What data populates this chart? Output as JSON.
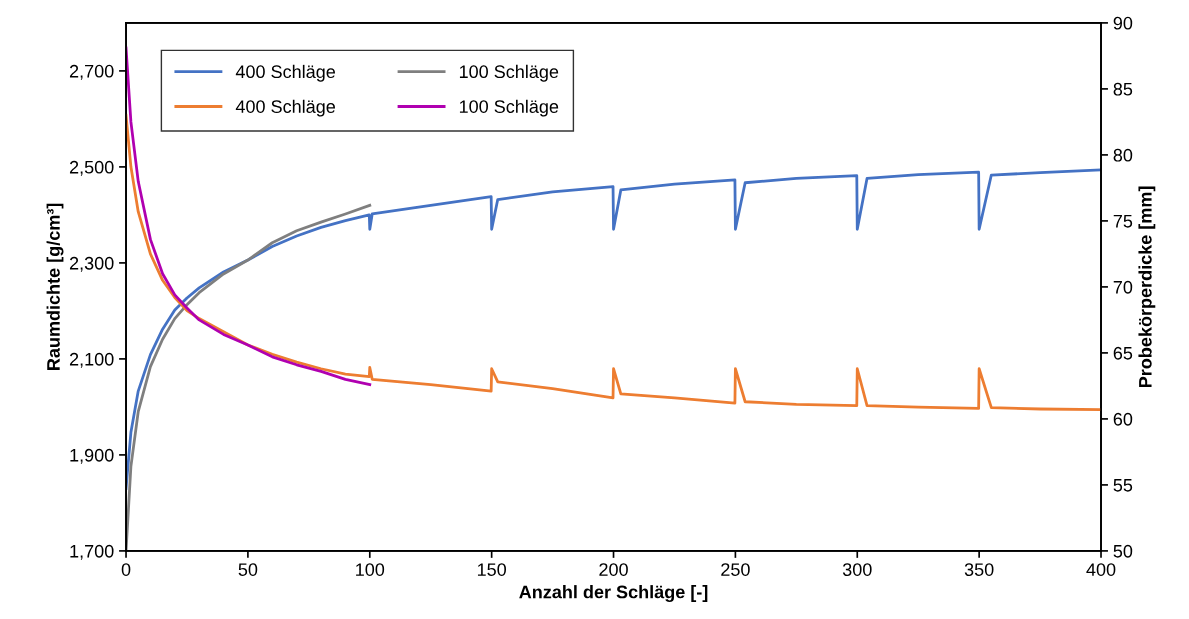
{
  "chart_data": {
    "type": "line",
    "xlabel": "Anzahl der Schläge [-]",
    "ylabel": "Raumdichte [g/cm³]",
    "y2label": "Probekörperdicke [mm]",
    "xlim": [
      0,
      400
    ],
    "xticks": [
      0,
      50,
      100,
      150,
      200,
      250,
      300,
      350,
      400
    ],
    "ylim": [
      1700,
      2800
    ],
    "yticks": [
      {
        "value": 1700,
        "label": "1,700"
      },
      {
        "value": 1900,
        "label": "1,900"
      },
      {
        "value": 2100,
        "label": "2,100"
      },
      {
        "value": 2300,
        "label": "2,300"
      },
      {
        "value": 2500,
        "label": "2,500"
      },
      {
        "value": 2700,
        "label": "2,700"
      }
    ],
    "y2lim": [
      50,
      90
    ],
    "y2ticks": [
      50,
      55,
      60,
      65,
      70,
      75,
      80,
      85,
      90
    ],
    "grid": false,
    "legend": "top left",
    "marker": "none",
    "line_style": "solid",
    "series": [
      {
        "name": "400 Schläge",
        "color": "#4472c4",
        "x": [
          0,
          2,
          5,
          10,
          15,
          20,
          25,
          30,
          40,
          50,
          60,
          70,
          80,
          90,
          99.8,
          100,
          101,
          125,
          149.8,
          150,
          152.5,
          175,
          199.8,
          200,
          203,
          225,
          249.8,
          250,
          254,
          275,
          299.8,
          300,
          304,
          325,
          349.8,
          350,
          355,
          375,
          400
        ],
        "values": [
          1830,
          1947,
          2033,
          2109,
          2162,
          2202,
          2227,
          2248,
          2281,
          2306,
          2334,
          2356,
          2374,
          2388,
          2400,
          2370,
          2402,
          2420,
          2438,
          2370,
          2432,
          2448,
          2459,
          2370,
          2452,
          2464,
          2473,
          2370,
          2467,
          2476,
          2482,
          2370,
          2476,
          2484,
          2489,
          2370,
          2483,
          2488,
          2494
        ]
      },
      {
        "name": "400 Schläge",
        "color": "#ed7d31",
        "axis": "y2",
        "x": [
          0,
          2,
          5,
          10,
          15,
          20,
          25,
          30,
          40,
          50,
          60,
          70,
          80,
          90,
          99.8,
          100,
          101,
          125,
          149.8,
          150,
          152.5,
          175,
          199.8,
          200,
          203,
          225,
          249.8,
          250,
          254,
          275,
          299.8,
          300,
          304,
          325,
          349.8,
          350,
          355,
          375,
          400
        ],
        "values": [
          83.0,
          79.1,
          75.7,
          72.5,
          70.5,
          69.2,
          68.2,
          67.6,
          66.6,
          65.6,
          64.9,
          64.3,
          63.8,
          63.4,
          63.2,
          63.9,
          63.0,
          62.6,
          62.1,
          63.8,
          62.8,
          62.3,
          61.6,
          63.8,
          61.9,
          61.6,
          61.2,
          63.8,
          61.3,
          61.1,
          61.0,
          63.8,
          61.0,
          60.9,
          60.8,
          63.8,
          60.85,
          60.75,
          60.7
        ]
      },
      {
        "name": "100 Schläge",
        "color": "#7f7f7f",
        "x": [
          0,
          2,
          5,
          10,
          15,
          20,
          25,
          30,
          40,
          50,
          60,
          70,
          80,
          90,
          100
        ],
        "values": [
          1700,
          1876,
          1990,
          2084,
          2141,
          2184,
          2213,
          2238,
          2277,
          2306,
          2342,
          2367,
          2385,
          2402,
          2420
        ]
      },
      {
        "name": "100 Schläge",
        "color": "#b000b0",
        "axis": "y2",
        "x": [
          0,
          2,
          5,
          10,
          15,
          20,
          25,
          30,
          40,
          50,
          60,
          70,
          80,
          90,
          100
        ],
        "values": [
          88.1,
          82.5,
          78.0,
          73.6,
          71.0,
          69.4,
          68.4,
          67.5,
          66.4,
          65.6,
          64.7,
          64.1,
          63.6,
          63.0,
          62.6
        ]
      }
    ]
  }
}
